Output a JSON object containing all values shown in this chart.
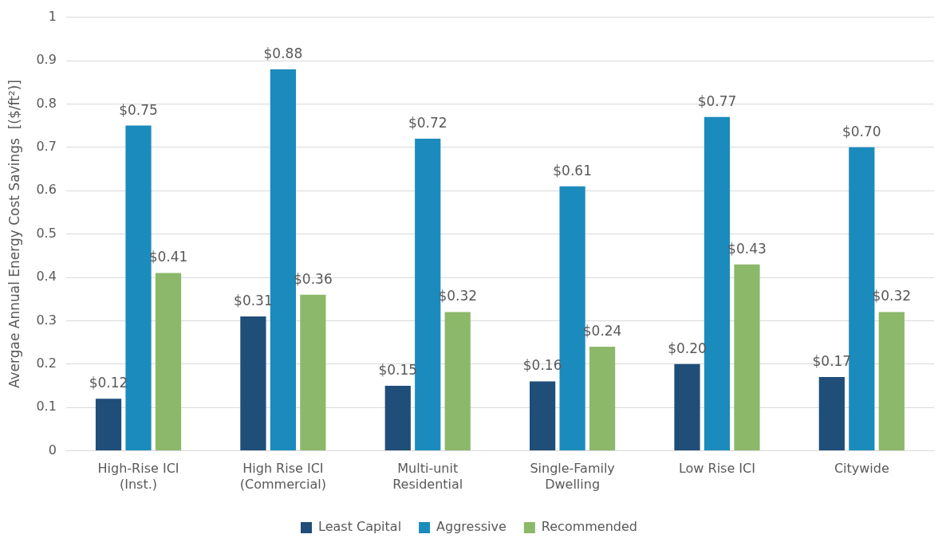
{
  "chart_data": {
    "type": "bar",
    "ylabel": "Avergae Annual Energy Cost Savings  [($/ft²)]",
    "categories": [
      "High-Rise ICI\n(Inst.)",
      "High Rise ICI\n(Commercial)",
      "Multi-unit\nResidential",
      "Single-Family\nDwelling",
      "Low Rise ICI",
      "Citywide"
    ],
    "series": [
      {
        "name": "Least Capital",
        "color": "#1f4e79",
        "values": [
          0.12,
          0.31,
          0.15,
          0.16,
          0.2,
          0.17
        ],
        "value_labels": [
          "$0.12",
          "$0.31",
          "$0.15",
          "$0.16",
          "$0.20",
          "$0.17"
        ]
      },
      {
        "name": "Aggressive",
        "color": "#1b8bbd",
        "values": [
          0.75,
          0.88,
          0.72,
          0.61,
          0.77,
          0.7
        ],
        "value_labels": [
          "$0.75",
          "$0.88",
          "$0.72",
          "$0.61",
          "$0.77",
          "$0.70"
        ]
      },
      {
        "name": "Recommended",
        "color": "#8cb86a",
        "values": [
          0.41,
          0.36,
          0.32,
          0.24,
          0.43,
          0.32
        ],
        "value_labels": [
          "$0.41",
          "$0.36",
          "$0.32",
          "$0.24",
          "$0.43",
          "$0.32"
        ]
      }
    ],
    "ylim": [
      0,
      1
    ],
    "yticks": [
      0,
      0.1,
      0.2,
      0.3,
      0.4,
      0.5,
      0.6,
      0.7,
      0.8,
      0.9,
      1
    ],
    "grid": "y",
    "legend": "bottom"
  }
}
